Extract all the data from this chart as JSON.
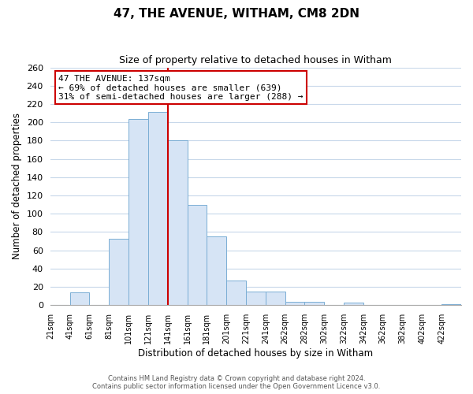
{
  "title": "47, THE AVENUE, WITHAM, CM8 2DN",
  "subtitle": "Size of property relative to detached houses in Witham",
  "xlabel": "Distribution of detached houses by size in Witham",
  "ylabel": "Number of detached properties",
  "bar_color": "#d6e4f5",
  "bar_edge_color": "#7aadd4",
  "background_color": "#ffffff",
  "grid_color": "#c8d8ea",
  "bins": [
    21,
    41,
    61,
    81,
    101,
    121,
    141,
    161,
    181,
    201,
    221,
    241,
    261,
    281,
    301,
    321,
    341,
    361,
    381,
    401,
    421
  ],
  "bin_labels": [
    "21sqm",
    "41sqm",
    "61sqm",
    "81sqm",
    "101sqm",
    "121sqm",
    "141sqm",
    "161sqm",
    "181sqm",
    "201sqm",
    "221sqm",
    "241sqm",
    "262sqm",
    "282sqm",
    "302sqm",
    "322sqm",
    "342sqm",
    "362sqm",
    "382sqm",
    "402sqm",
    "422sqm"
  ],
  "heights": [
    0,
    14,
    0,
    73,
    204,
    211,
    180,
    110,
    75,
    27,
    15,
    15,
    4,
    4,
    0,
    3,
    0,
    0,
    0,
    0,
    1
  ],
  "ylim": [
    0,
    260
  ],
  "yticks": [
    0,
    20,
    40,
    60,
    80,
    100,
    120,
    140,
    160,
    180,
    200,
    220,
    240,
    260
  ],
  "vline_x": 141,
  "vline_color": "#cc0000",
  "annotation_title": "47 THE AVENUE: 137sqm",
  "annotation_line1": "← 69% of detached houses are smaller (639)",
  "annotation_line2": "31% of semi-detached houses are larger (288) →",
  "annotation_box_color": "#ffffff",
  "annotation_box_edge": "#cc0000",
  "footer1": "Contains HM Land Registry data © Crown copyright and database right 2024.",
  "footer2": "Contains public sector information licensed under the Open Government Licence v3.0."
}
